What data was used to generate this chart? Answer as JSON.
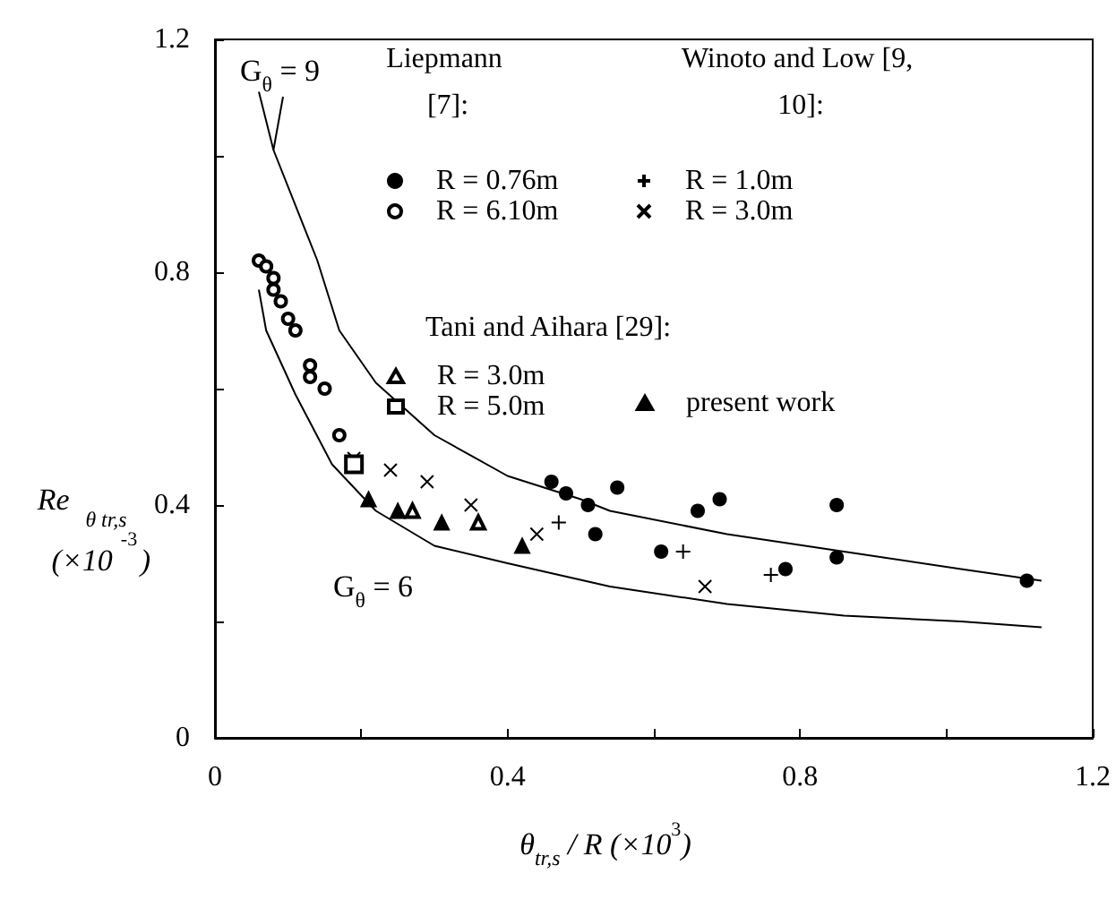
{
  "chart_data": {
    "type": "scatter",
    "xlabel": "θ$_{tr,s}$ / R (×10$^{3}$)",
    "ylabel": "Re$_{θ tr,s}$ (×10$^{-3}$)",
    "annotations": [
      "Liepmann [7]:",
      "Winoto and Low [9, 10]:",
      "Tani and Aihara [29]:"
    ],
    "xlim": [
      0,
      1.2
    ],
    "ylim": [
      0,
      1.2
    ],
    "xticks": [
      0,
      {
        "value": 0.2,
        "label": null
      },
      0.4,
      {
        "value": 0.6,
        "label": null
      },
      0.8,
      {
        "value": 1.0,
        "label": null
      },
      1.2
    ],
    "yticks": [
      0,
      {
        "value": 0.2,
        "label": null
      },
      0.4,
      {
        "value": 0.6,
        "label": null
      },
      0.8,
      {
        "value": 1.0,
        "label": null
      },
      1.2
    ],
    "grid": false,
    "legend": "top right",
    "series": [
      {
        "name": "R = 0.76m",
        "color": "#000000",
        "marker": "circle",
        "x": [
          0.46,
          0.48,
          0.51,
          0.52,
          0.55,
          0.61,
          0.66,
          0.69,
          0.78,
          0.85,
          0.85,
          1.11
        ],
        "values": [
          0.44,
          0.42,
          0.4,
          0.35,
          0.43,
          0.32,
          0.39,
          0.41,
          0.29,
          0.4,
          0.31,
          0.27
        ]
      },
      {
        "name": "R = 6.10m",
        "color": "#000000",
        "marker": "circle_open",
        "x": [
          0.06,
          0.07,
          0.08,
          0.08,
          0.09,
          0.1,
          0.11,
          0.13,
          0.13,
          0.15,
          0.17
        ],
        "values": [
          0.82,
          0.81,
          0.79,
          0.77,
          0.75,
          0.72,
          0.7,
          0.64,
          0.62,
          0.6,
          0.52
        ]
      },
      {
        "name": "R = 1.0m",
        "color": "#000000",
        "marker": "plus",
        "x": [
          0.47,
          0.64,
          0.76
        ],
        "values": [
          0.37,
          0.32,
          0.28
        ]
      },
      {
        "name": "R = 3.0m",
        "color": "#000000",
        "marker": "x",
        "x": [
          0.19,
          0.24,
          0.29,
          0.35,
          0.44,
          0.67
        ],
        "values": [
          0.48,
          0.46,
          0.44,
          0.4,
          0.35,
          0.26
        ]
      },
      {
        "name": "R = 3.0m",
        "color": "#000000",
        "marker": "triangle_open",
        "x": [
          0.27,
          0.36
        ],
        "values": [
          0.39,
          0.37
        ]
      },
      {
        "name": "R = 5.0m",
        "color": "#000000",
        "marker": "square_open",
        "x": [
          0.19
        ],
        "values": [
          0.47
        ]
      },
      {
        "name": "present work",
        "color": "#000000",
        "marker": "triangle",
        "x": [
          0.21,
          0.25,
          0.31,
          0.42
        ],
        "values": [
          0.41,
          0.39,
          0.37,
          0.33
        ]
      },
      {
        "name": "G$_{θ}$ = 9",
        "type": "line",
        "color": "#000000",
        "marker": "none",
        "x": [
          0.06,
          0.08,
          0.14,
          0.17,
          0.22,
          0.3,
          0.4,
          0.5,
          0.54,
          0.7,
          0.86,
          1.02,
          1.13
        ],
        "values": [
          1.11,
          1.01,
          0.82,
          0.7,
          0.61,
          0.52,
          0.45,
          0.41,
          0.39,
          0.35,
          0.32,
          0.29,
          0.27
        ]
      },
      {
        "name": "G$_{θ}$ = 6",
        "type": "line",
        "color": "#000000",
        "marker": "none",
        "x": [
          0.06,
          0.07,
          0.11,
          0.16,
          0.22,
          0.3,
          0.4,
          0.54,
          0.7,
          0.86,
          1.02,
          1.13
        ],
        "values": [
          0.77,
          0.7,
          0.59,
          0.47,
          0.39,
          0.33,
          0.3,
          0.26,
          0.23,
          0.21,
          0.2,
          0.19
        ]
      }
    ]
  }
}
